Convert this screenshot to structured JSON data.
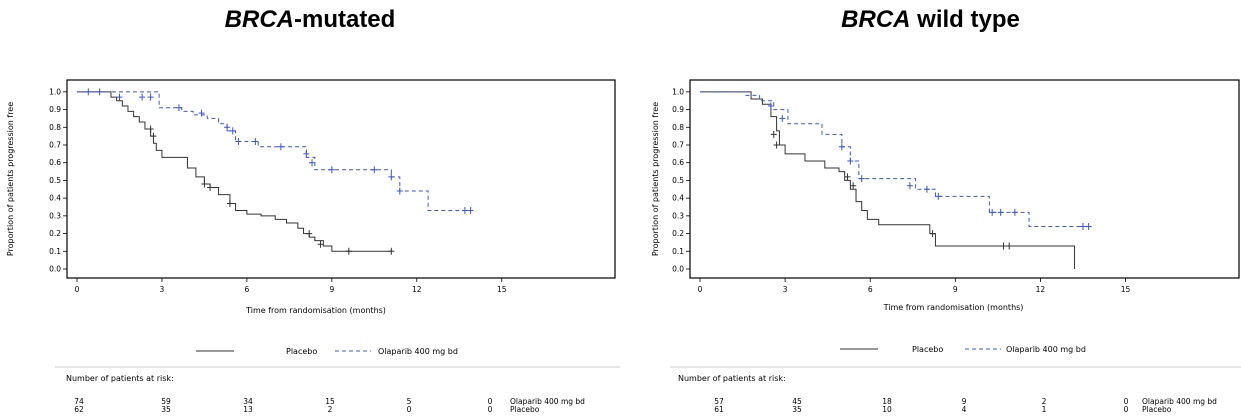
{
  "chart_data": [
    {
      "type": "line",
      "title_italic": "BRCA",
      "title_rest": "-mutated",
      "xlabel": "Time from randomisation (months)",
      "ylabel": "Proportion of patients progression free",
      "xlim": [
        0,
        19
      ],
      "ylim": [
        0,
        1.05
      ],
      "xticks": [
        "0",
        "3",
        "6",
        "9",
        "12",
        "15"
      ],
      "xtick_values": [
        0,
        3,
        6,
        9,
        12,
        15
      ],
      "yticks": [
        "0.0",
        "0.1",
        "0.2",
        "0.3",
        "0.4",
        "0.5",
        "0.6",
        "0.7",
        "0.8",
        "0.9",
        "1.0"
      ],
      "ytick_values": [
        0.0,
        0.1,
        0.2,
        0.3,
        0.4,
        0.5,
        0.6,
        0.7,
        0.8,
        0.9,
        1.0
      ],
      "series": [
        {
          "name": "Placebo",
          "color": "#333333",
          "dash": "solid",
          "x": [
            0,
            1.2,
            1.4,
            1.6,
            1.8,
            2.0,
            2.2,
            2.4,
            2.6,
            2.7,
            2.8,
            3.0,
            3.9,
            4.2,
            4.5,
            4.7,
            5.0,
            5.4,
            5.6,
            6.0,
            6.5,
            7.0,
            7.4,
            7.8,
            8.0,
            8.2,
            8.4,
            8.7,
            9.0,
            9.5,
            11.1
          ],
          "y": [
            1.0,
            0.97,
            0.95,
            0.92,
            0.89,
            0.86,
            0.83,
            0.79,
            0.75,
            0.71,
            0.67,
            0.63,
            0.57,
            0.52,
            0.48,
            0.46,
            0.42,
            0.37,
            0.33,
            0.31,
            0.3,
            0.28,
            0.26,
            0.23,
            0.2,
            0.18,
            0.16,
            0.13,
            0.1,
            0.1,
            0.1
          ],
          "censor_x": [
            2.6,
            2.7,
            4.5,
            4.7,
            5.4,
            8.2,
            8.6,
            9.6,
            11.1
          ],
          "censor_y": [
            0.79,
            0.75,
            0.48,
            0.46,
            0.37,
            0.2,
            0.14,
            0.1,
            0.1
          ]
        },
        {
          "name": "Olaparib 400 mg bd",
          "color": "#3b54e0",
          "dash": "4,3",
          "x": [
            0,
            2.9,
            3.7,
            4.1,
            4.6,
            5.0,
            5.3,
            5.6,
            6.4,
            8.1,
            8.4,
            11.1,
            11.4,
            12.4,
            13.9
          ],
          "y": [
            1.0,
            0.91,
            0.89,
            0.87,
            0.85,
            0.82,
            0.78,
            0.72,
            0.69,
            0.63,
            0.56,
            0.52,
            0.44,
            0.33,
            0.33
          ],
          "censor_x": [
            0.4,
            0.8,
            1.5,
            2.3,
            2.6,
            3.6,
            4.4,
            5.3,
            5.5,
            5.7,
            6.3,
            7.2,
            8.1,
            8.3,
            9.0,
            10.5,
            11.1,
            11.4,
            13.7,
            13.9
          ],
          "censor_y": [
            1.0,
            1.0,
            0.97,
            0.97,
            0.97,
            0.91,
            0.88,
            0.8,
            0.78,
            0.72,
            0.72,
            0.69,
            0.65,
            0.6,
            0.56,
            0.56,
            0.52,
            0.44,
            0.33,
            0.33
          ]
        }
      ],
      "legend": [
        "Placebo",
        "Olaparib 400 mg bd"
      ],
      "risk_title": "Number of patients at risk:",
      "risk_rows": [
        {
          "label": "Olaparib 400 mg bd",
          "values": [
            "74",
            "59",
            "34",
            "15",
            "5",
            "0"
          ]
        },
        {
          "label": "Placebo",
          "values": [
            "62",
            "35",
            "13",
            "2",
            "0",
            "0"
          ]
        }
      ]
    },
    {
      "type": "line",
      "title_italic": "BRCA",
      "title_rest": " wild type",
      "xlabel": "Time from randomisation (months)",
      "ylabel": "Proportion of patients progression free",
      "xlim": [
        0,
        19
      ],
      "ylim": [
        0,
        1.05
      ],
      "xticks": [
        "0",
        "3",
        "6",
        "9",
        "12",
        "15"
      ],
      "xtick_values": [
        0,
        3,
        6,
        9,
        12,
        15
      ],
      "yticks": [
        "0.0",
        "0.1",
        "0.2",
        "0.3",
        "0.4",
        "0.5",
        "0.6",
        "0.7",
        "0.8",
        "0.9",
        "1.0"
      ],
      "ytick_values": [
        0.0,
        0.1,
        0.2,
        0.3,
        0.4,
        0.5,
        0.6,
        0.7,
        0.8,
        0.9,
        1.0
      ],
      "series": [
        {
          "name": "Placebo",
          "color": "#333333",
          "dash": "solid",
          "x": [
            0,
            1.8,
            2.2,
            2.5,
            2.7,
            2.8,
            3.0,
            3.7,
            4.4,
            4.9,
            5.1,
            5.3,
            5.5,
            5.7,
            5.9,
            6.3,
            8.1,
            8.3,
            13.2,
            13.2
          ],
          "y": [
            1.0,
            0.96,
            0.93,
            0.86,
            0.78,
            0.7,
            0.65,
            0.61,
            0.57,
            0.55,
            0.5,
            0.45,
            0.38,
            0.33,
            0.28,
            0.25,
            0.2,
            0.13,
            0.13,
            0.0
          ],
          "censor_x": [
            2.6,
            2.7,
            5.2,
            5.4,
            8.2,
            10.7,
            10.9
          ],
          "censor_y": [
            0.76,
            0.7,
            0.52,
            0.47,
            0.2,
            0.13,
            0.13
          ]
        },
        {
          "name": "Olaparib 400 mg bd",
          "color": "#3b54e0",
          "dash": "4,3",
          "x": [
            0,
            1.6,
            2.1,
            2.6,
            3.1,
            4.3,
            5.0,
            5.3,
            5.6,
            7.6,
            8.3,
            10.2,
            11.3,
            11.6,
            13.7
          ],
          "y": [
            1.0,
            0.98,
            0.95,
            0.9,
            0.82,
            0.76,
            0.69,
            0.61,
            0.51,
            0.45,
            0.41,
            0.32,
            0.32,
            0.24,
            0.24
          ],
          "censor_x": [
            2.5,
            2.9,
            5.0,
            5.3,
            5.7,
            7.4,
            8.0,
            8.4,
            10.3,
            10.6,
            11.1,
            13.5,
            13.7
          ],
          "censor_y": [
            0.92,
            0.85,
            0.69,
            0.61,
            0.51,
            0.47,
            0.45,
            0.41,
            0.32,
            0.32,
            0.32,
            0.24,
            0.24
          ]
        }
      ],
      "legend": [
        "Placebo",
        "Olaparib 400 mg bd"
      ],
      "risk_title": "Number of patients at risk:",
      "risk_rows": [
        {
          "label": "Olaparib 400 mg bd",
          "values": [
            "57",
            "45",
            "18",
            "9",
            "2",
            "0"
          ]
        },
        {
          "label": "Placebo",
          "values": [
            "61",
            "35",
            "10",
            "4",
            "1",
            "0"
          ]
        }
      ]
    }
  ]
}
